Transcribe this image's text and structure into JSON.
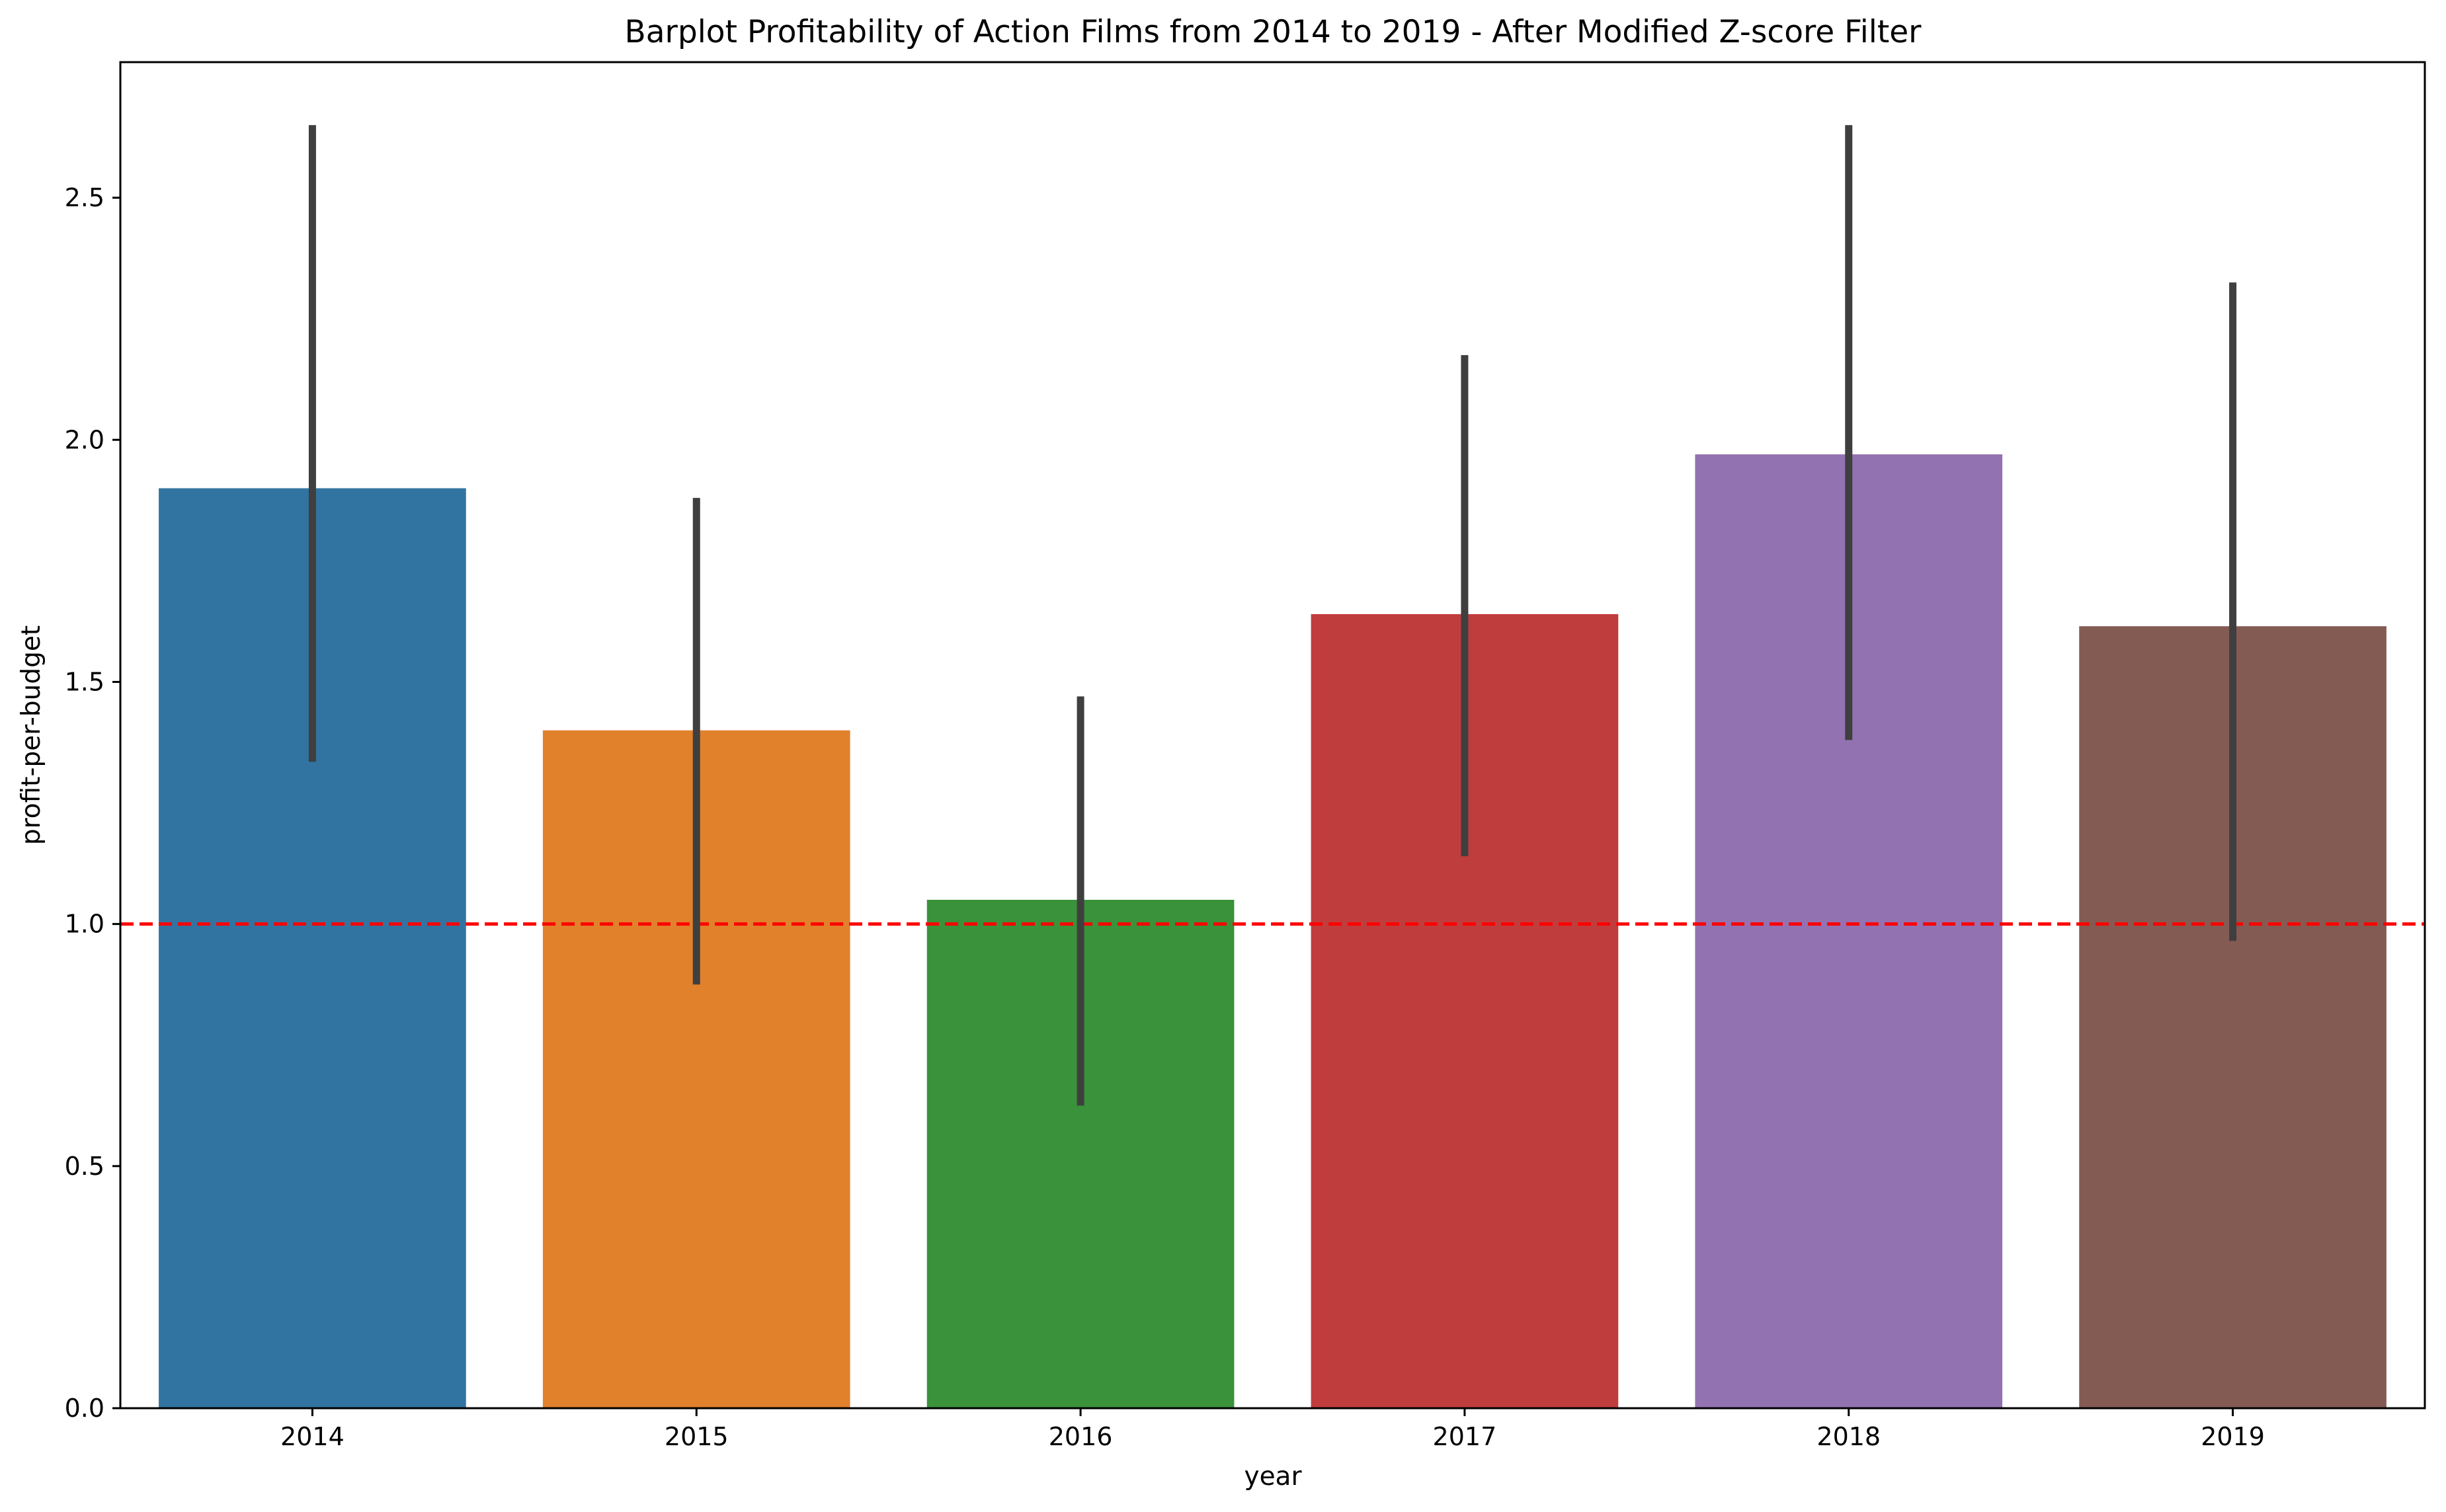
{
  "chart_data": {
    "type": "bar",
    "title": "Barplot Profitability of Action Films from 2014 to 2019 - After Modified Z-score Filter",
    "xlabel": "year",
    "ylabel": "profit-per-budget",
    "categories": [
      "2014",
      "2015",
      "2016",
      "2017",
      "2018",
      "2019"
    ],
    "values": [
      1.9,
      1.4,
      1.05,
      1.64,
      1.97,
      1.615
    ],
    "error_low": [
      1.335,
      0.875,
      0.625,
      1.14,
      1.38,
      0.965
    ],
    "error_high": [
      2.65,
      1.88,
      1.47,
      2.175,
      2.65,
      2.325
    ],
    "colors": [
      "#3274a1",
      "#e1812c",
      "#3a923a",
      "#c03d3e",
      "#9372b2",
      "#845b53"
    ],
    "error_bar_color": "#3f3f3f",
    "ylim": [
      0,
      2.78
    ],
    "yticks": [
      0.0,
      0.5,
      1.0,
      1.5,
      2.0,
      2.5
    ],
    "ytick_labels": [
      "0.0",
      "0.5",
      "1.0",
      "1.5",
      "2.0",
      "2.5"
    ],
    "reference_line": {
      "y": 1.0,
      "color": "#ff0000",
      "style": "dashed"
    },
    "grid": false,
    "legend": "none"
  }
}
